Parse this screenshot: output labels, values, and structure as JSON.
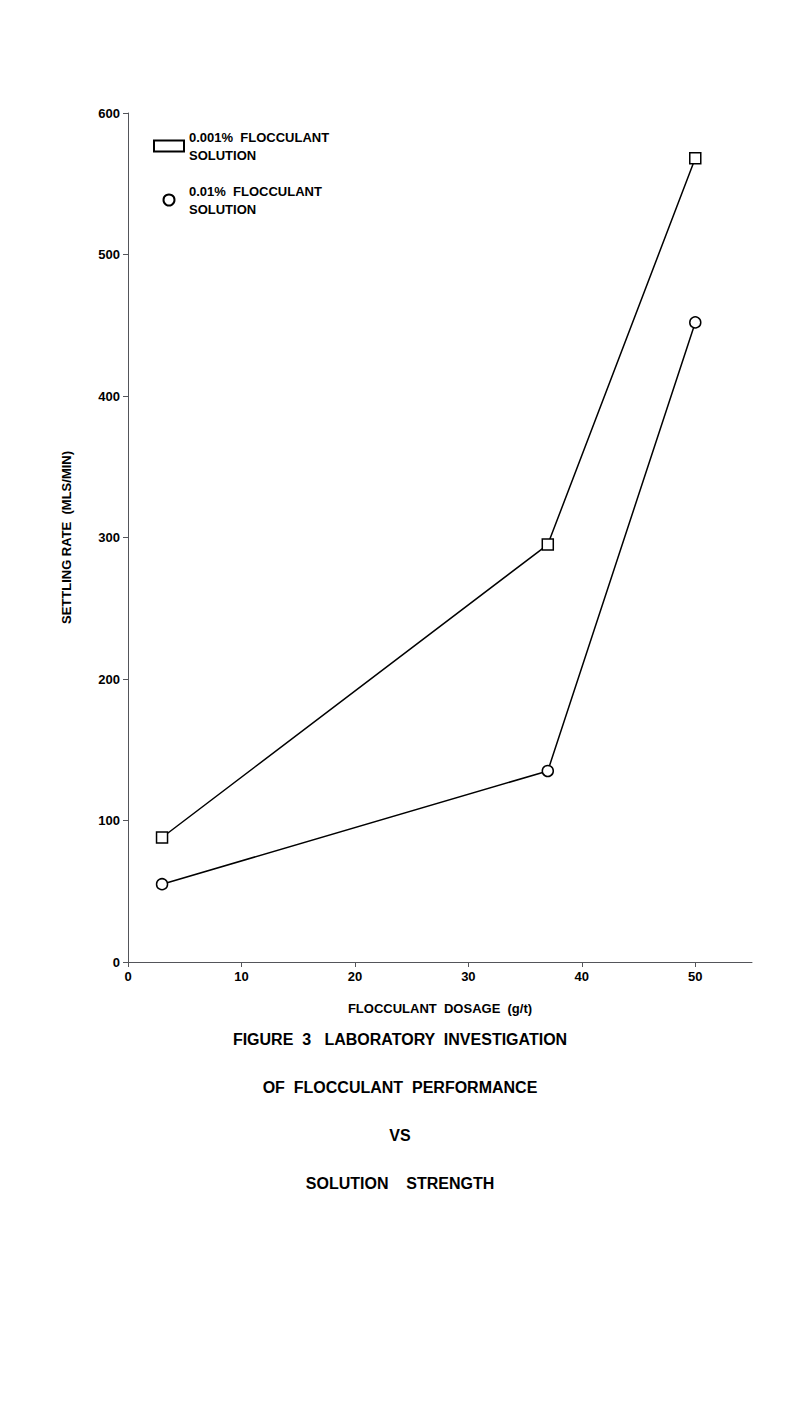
{
  "chart_data": {
    "type": "line",
    "title": "FIGURE  3   LABORATORY  INVESTIGATION\nOF  FLOCCULANT  PERFORMANCE\nVS\nSOLUTION    STRENGTH",
    "x_label": "FLOCCULANT  DOSAGE  (g/t)",
    "y_label": "SETTLING RATE  (MLS/MIN)",
    "series": [
      {
        "name": "0.001%  FLOCCULANT\nSOLUTION",
        "color": "#000000",
        "marker": "square",
        "x": [
          3,
          37,
          50
        ],
        "values": [
          88,
          295,
          568
        ]
      },
      {
        "name": "0.01%  FLOCCULANT\nSOLUTION",
        "color": "#000000",
        "marker": "circle",
        "x": [
          3,
          37,
          50
        ],
        "values": [
          55,
          135,
          452
        ]
      }
    ],
    "xlim": [
      0,
      55
    ],
    "ylim": [
      0,
      600
    ],
    "xticks": [
      0,
      10,
      20,
      30,
      40,
      50
    ],
    "yticks": [
      0,
      100,
      200,
      300,
      400,
      500,
      600
    ],
    "grid": false,
    "legend": "upper left"
  }
}
